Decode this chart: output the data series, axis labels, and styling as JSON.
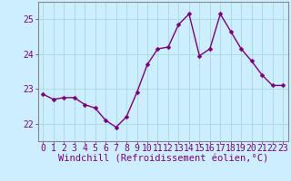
{
  "x": [
    0,
    1,
    2,
    3,
    4,
    5,
    6,
    7,
    8,
    9,
    10,
    11,
    12,
    13,
    14,
    15,
    16,
    17,
    18,
    19,
    20,
    21,
    22,
    23
  ],
  "y": [
    22.85,
    22.7,
    22.75,
    22.75,
    22.55,
    22.45,
    22.1,
    21.9,
    22.2,
    22.9,
    23.7,
    24.15,
    24.2,
    24.85,
    25.15,
    23.95,
    24.15,
    25.15,
    24.65,
    24.15,
    23.8,
    23.4,
    23.1,
    23.1
  ],
  "line_color": "#7b007b",
  "marker_color": "#7b007b",
  "bg_color": "#cceeff",
  "grid_color": "#aadddd",
  "tick_label_color": "#7b007b",
  "axis_label_color": "#7b007b",
  "xlabel": "Windchill (Refroidissement éolien,°C)",
  "ylim": [
    21.5,
    25.5
  ],
  "xlim": [
    -0.5,
    23.5
  ],
  "yticks": [
    22,
    23,
    24,
    25
  ],
  "xticks": [
    0,
    1,
    2,
    3,
    4,
    5,
    6,
    7,
    8,
    9,
    10,
    11,
    12,
    13,
    14,
    15,
    16,
    17,
    18,
    19,
    20,
    21,
    22,
    23
  ],
  "font_size_xlabel": 7.5,
  "font_size_ticks": 7,
  "line_width": 1.0,
  "marker_size": 2.5
}
